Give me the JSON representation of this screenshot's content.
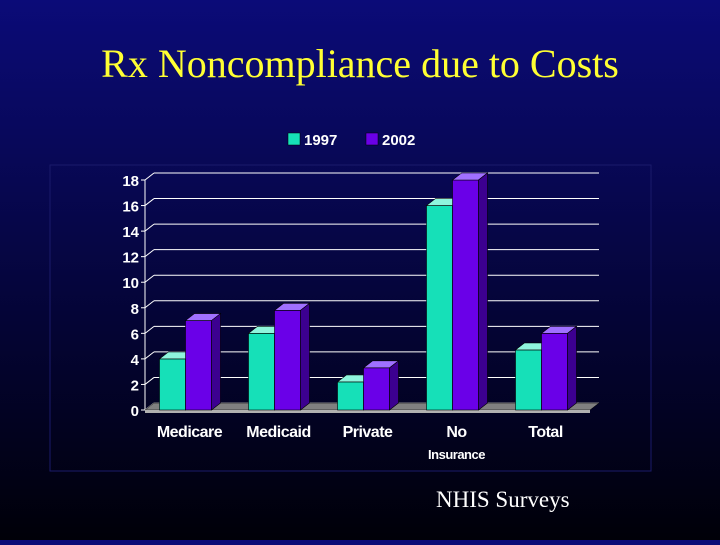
{
  "slide": {
    "title": "Rx Noncompliance due to Costs",
    "source": "NHIS Surveys"
  },
  "chart_data": {
    "type": "bar",
    "categories": [
      "Medicare",
      "Medicaid",
      "Private",
      "No Insurance",
      "Total"
    ],
    "category_lines": [
      [
        "Medicare"
      ],
      [
        "Medicaid"
      ],
      [
        "Private"
      ],
      [
        "No",
        "Insurance"
      ],
      [
        "Total"
      ]
    ],
    "series": [
      {
        "name": "1997",
        "values": [
          4,
          6,
          2.2,
          16,
          4.7
        ],
        "color": "#16e0b8",
        "top": "#8ff5dd",
        "side": "#0a9078"
      },
      {
        "name": "2002",
        "values": [
          7,
          7.8,
          3.3,
          18,
          6
        ],
        "color": "#6a00e8",
        "top": "#a070ff",
        "side": "#3c0090"
      }
    ],
    "ylim": [
      0,
      18
    ],
    "yticks": [
      0,
      2,
      4,
      6,
      8,
      10,
      12,
      14,
      16,
      18
    ],
    "grid": true,
    "legend": "top-center",
    "style": "3d-clustered-column"
  }
}
